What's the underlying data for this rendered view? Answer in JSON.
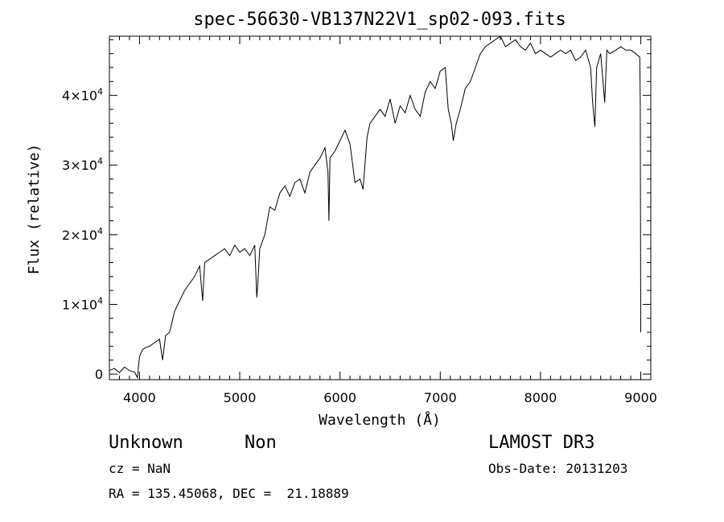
{
  "chart_data": {
    "type": "line",
    "title": "spec-56630-VB137N22V1_sp02-093.fits",
    "xlabel": "Wavelength (Å)",
    "ylabel": "Flux (relative)",
    "xlim": [
      3700,
      9100
    ],
    "ylim": [
      -800,
      48500
    ],
    "x_ticks": [
      4000,
      5000,
      6000,
      7000,
      8000,
      9000
    ],
    "x_tick_labels": [
      "4000",
      "5000",
      "6000",
      "7000",
      "8000",
      "9000"
    ],
    "y_ticks": [
      {
        "value": 0,
        "mantissa": "0",
        "exponent": ""
      },
      {
        "value": 10000,
        "mantissa": "1×10",
        "exponent": "4"
      },
      {
        "value": 20000,
        "mantissa": "2×10",
        "exponent": "4"
      },
      {
        "value": 30000,
        "mantissa": "3×10",
        "exponent": "4"
      },
      {
        "value": 40000,
        "mantissa": "4×10",
        "exponent": "4"
      }
    ],
    "grid": false,
    "series": [
      {
        "name": "spectrum",
        "x": [
          3700,
          3750,
          3800,
          3850,
          3900,
          3950,
          3980,
          4000,
          4030,
          4060,
          4100,
          4150,
          4200,
          4230,
          4260,
          4300,
          4350,
          4400,
          4450,
          4500,
          4550,
          4600,
          4630,
          4650,
          4700,
          4750,
          4800,
          4850,
          4900,
          4950,
          5000,
          5050,
          5100,
          5150,
          5170,
          5180,
          5200,
          5250,
          5300,
          5350,
          5400,
          5450,
          5500,
          5550,
          5600,
          5650,
          5700,
          5750,
          5800,
          5850,
          5880,
          5890,
          5900,
          5950,
          6000,
          6050,
          6100,
          6150,
          6200,
          6230,
          6270,
          6300,
          6350,
          6400,
          6450,
          6500,
          6550,
          6600,
          6650,
          6700,
          6750,
          6800,
          6850,
          6900,
          6950,
          7000,
          7050,
          7080,
          7110,
          7130,
          7160,
          7200,
          7250,
          7300,
          7350,
          7400,
          7450,
          7500,
          7550,
          7600,
          7650,
          7700,
          7750,
          7800,
          7850,
          7900,
          7950,
          8000,
          8050,
          8100,
          8150,
          8200,
          8250,
          8300,
          8350,
          8400,
          8450,
          8500,
          8520,
          8542,
          8560,
          8600,
          8640,
          8662,
          8690,
          8750,
          8800,
          8850,
          8900,
          8950,
          8990,
          8995,
          9000
        ],
        "y": [
          500,
          800,
          200,
          1000,
          500,
          300,
          -500,
          2500,
          3500,
          3800,
          4000,
          4500,
          5000,
          2000,
          5500,
          6000,
          9000,
          10500,
          12000,
          13000,
          14000,
          15500,
          10500,
          16000,
          16500,
          17000,
          17500,
          18000,
          17000,
          18500,
          17500,
          18000,
          17000,
          18500,
          11000,
          13000,
          18000,
          20000,
          24000,
          23500,
          26000,
          27000,
          25500,
          27500,
          28000,
          26000,
          29000,
          30000,
          31000,
          32500,
          29000,
          22000,
          31000,
          32000,
          33500,
          35000,
          33000,
          27500,
          28000,
          26500,
          34000,
          36000,
          37000,
          38000,
          37000,
          39500,
          36000,
          38500,
          37500,
          40000,
          38000,
          37000,
          40500,
          42000,
          41000,
          43500,
          44000,
          38000,
          36000,
          33500,
          36000,
          38000,
          41000,
          42000,
          44000,
          46000,
          47000,
          47500,
          48000,
          48500,
          47000,
          47500,
          48000,
          47000,
          46500,
          47500,
          46000,
          46500,
          46000,
          45500,
          46000,
          46500,
          46000,
          46500,
          45000,
          45500,
          46500,
          44000,
          39000,
          35500,
          44000,
          46000,
          39000,
          46500,
          46000,
          46500,
          47000,
          46500,
          46500,
          46000,
          45500,
          39000,
          6000
        ]
      }
    ]
  },
  "info": {
    "object_class": "Unknown",
    "object_subclass": "Non",
    "redshift": "cz = NaN",
    "coordinates": "RA = 135.45068, DEC =  21.18889",
    "survey": "LAMOST DR3",
    "obs_date": "Obs-Date: 20131203"
  }
}
